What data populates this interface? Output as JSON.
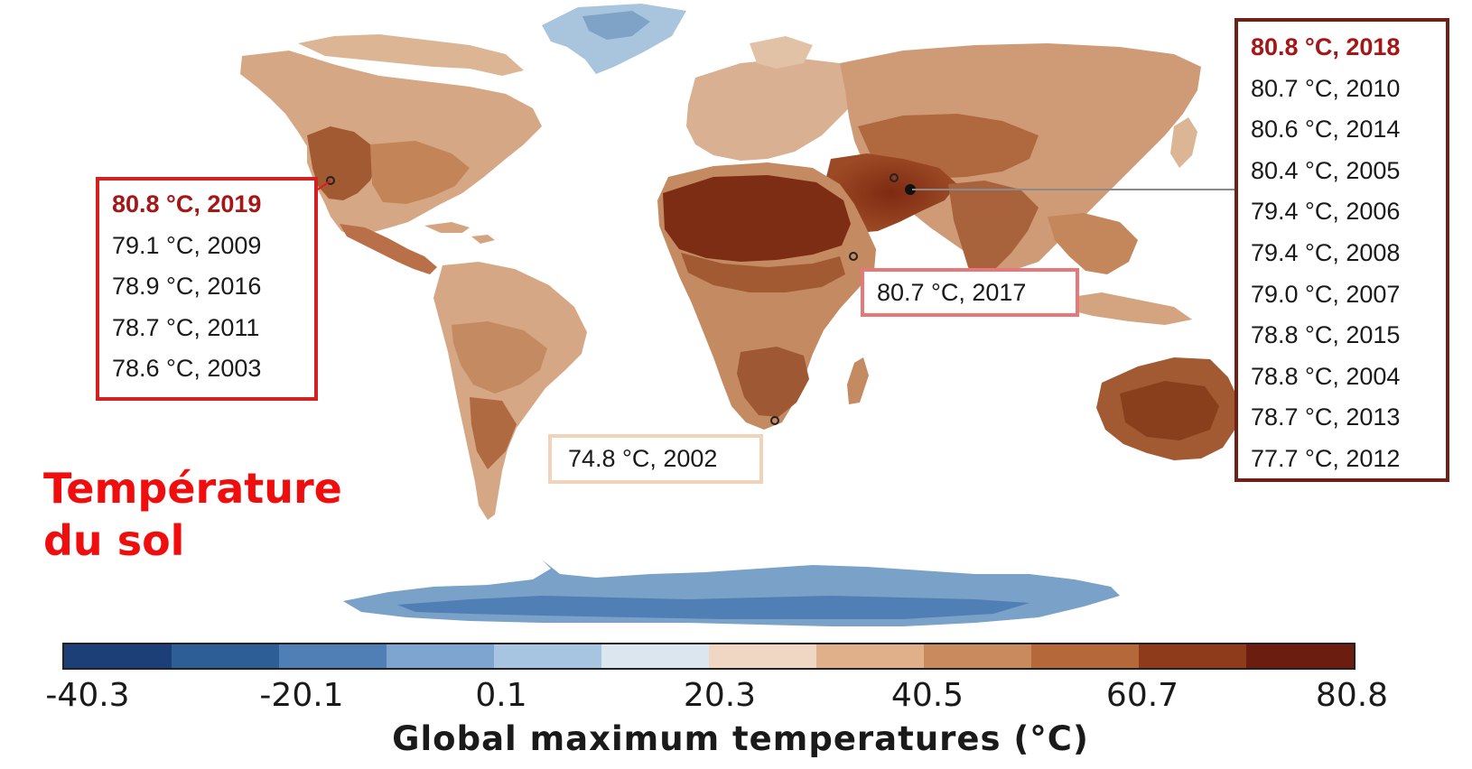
{
  "map": {
    "title_overlay_lines": [
      "Température",
      "du sol"
    ],
    "colorbar_label": "Global maximum temperatures (°C)",
    "colorbar_ticks": [
      "-40.3",
      "-20.1",
      "0.1",
      "20.3",
      "40.5",
      "60.7",
      "80.8"
    ],
    "colorbar_range": [
      -40.3,
      80.8
    ],
    "colorbar_colors": [
      "#1d3f78",
      "#2e5e96",
      "#4f7fb4",
      "#7ea5cf",
      "#a7c5e0",
      "#dce6ef",
      "#efd7c3",
      "#dfb08a",
      "#c98a5d",
      "#b5683a",
      "#8d3b1a",
      "#6b1e0f"
    ],
    "records": {
      "americas": {
        "border_color": "#d32020",
        "entries": [
          "80.8 °C, 2019",
          "79.1 °C, 2009",
          "78.9 °C, 2016",
          "78.7 °C, 2011",
          "78.6 °C, 2003"
        ]
      },
      "asia": {
        "border_color": "#6b2217",
        "entries": [
          "80.8 °C, 2018",
          "80.7 °C, 2010",
          "80.6 °C, 2014",
          "80.4 °C, 2005",
          "79.4 °C, 2006",
          "79.4 °C, 2008",
          "79.0 °C, 2007",
          "78.8 °C, 2015",
          "78.8 °C, 2004",
          "78.7 °C, 2013",
          "77.7 °C, 2012"
        ]
      },
      "africa": {
        "border_color": "#e5787a",
        "entries": [
          "80.7 °C, 2017"
        ]
      },
      "south_america": {
        "border_color": "#f1d3bb",
        "entries": [
          "74.8 °C, 2002"
        ]
      }
    }
  }
}
